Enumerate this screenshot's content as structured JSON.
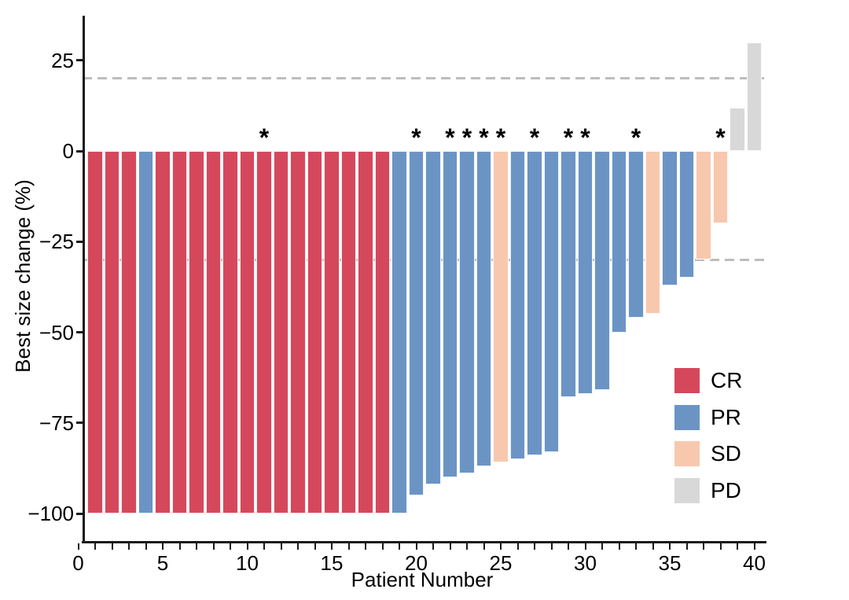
{
  "figure": {
    "background": "#ffffff"
  },
  "chart_data": {
    "type": "bar",
    "variant": "waterfall",
    "title": "",
    "xlabel": "Patient Number",
    "ylabel": "Best size change (%)",
    "grid": false,
    "x_axis": {
      "min": 0,
      "max": 40,
      "minor_tick_step": 1,
      "labeled_ticks": [
        0,
        5,
        10,
        15,
        20,
        25,
        30,
        35,
        40
      ]
    },
    "y_axis": {
      "min": -108,
      "max": 37,
      "ticks": [
        {
          "value": 25,
          "label": "25"
        },
        {
          "value": 0,
          "label": "0"
        },
        {
          "value": -25,
          "label": "−25"
        },
        {
          "value": -50,
          "label": "−50"
        },
        {
          "value": -75,
          "label": "−75"
        },
        {
          "value": -100,
          "label": "−100"
        }
      ]
    },
    "thresholds": [
      {
        "value": 20,
        "style": "dashed",
        "color": "#BDBDBD"
      },
      {
        "value": -30,
        "style": "dashed",
        "color": "#BDBDBD"
      }
    ],
    "annotation_symbol": "*",
    "colors": {
      "CR": "#D5485C",
      "PR": "#6B94C5",
      "SD": "#F8C8AE",
      "PD": "#D8D8D8",
      "axis": "#1a1a1a",
      "threshold": "#BDBDBD"
    },
    "legend": {
      "position": "right-inside",
      "entries": [
        {
          "label": "CR",
          "color": "#D5485C"
        },
        {
          "label": "PR",
          "color": "#6B94C5"
        },
        {
          "label": "SD",
          "color": "#F8C8AE"
        },
        {
          "label": "PD",
          "color": "#D8D8D8"
        }
      ]
    },
    "bars": [
      {
        "patient": 1,
        "value": -100,
        "response": "CR",
        "star": false
      },
      {
        "patient": 2,
        "value": -100,
        "response": "CR",
        "star": false
      },
      {
        "patient": 3,
        "value": -100,
        "response": "CR",
        "star": false
      },
      {
        "patient": 4,
        "value": -100,
        "response": "PR",
        "star": false
      },
      {
        "patient": 5,
        "value": -100,
        "response": "CR",
        "star": false
      },
      {
        "patient": 6,
        "value": -100,
        "response": "CR",
        "star": false
      },
      {
        "patient": 7,
        "value": -100,
        "response": "CR",
        "star": false
      },
      {
        "patient": 8,
        "value": -100,
        "response": "CR",
        "star": false
      },
      {
        "patient": 9,
        "value": -100,
        "response": "CR",
        "star": false
      },
      {
        "patient": 10,
        "value": -100,
        "response": "CR",
        "star": false
      },
      {
        "patient": 11,
        "value": -100,
        "response": "CR",
        "star": true
      },
      {
        "patient": 12,
        "value": -100,
        "response": "CR",
        "star": false
      },
      {
        "patient": 13,
        "value": -100,
        "response": "CR",
        "star": false
      },
      {
        "patient": 14,
        "value": -100,
        "response": "CR",
        "star": false
      },
      {
        "patient": 15,
        "value": -100,
        "response": "CR",
        "star": false
      },
      {
        "patient": 16,
        "value": -100,
        "response": "CR",
        "star": false
      },
      {
        "patient": 17,
        "value": -100,
        "response": "CR",
        "star": false
      },
      {
        "patient": 18,
        "value": -100,
        "response": "CR",
        "star": false
      },
      {
        "patient": 19,
        "value": -100,
        "response": "PR",
        "star": false
      },
      {
        "patient": 20,
        "value": -95,
        "response": "PR",
        "star": true
      },
      {
        "patient": 21,
        "value": -92,
        "response": "PR",
        "star": false
      },
      {
        "patient": 22,
        "value": -90,
        "response": "PR",
        "star": true
      },
      {
        "patient": 23,
        "value": -89,
        "response": "PR",
        "star": true
      },
      {
        "patient": 24,
        "value": -87,
        "response": "PR",
        "star": true
      },
      {
        "patient": 25,
        "value": -86,
        "response": "SD",
        "star": true
      },
      {
        "patient": 26,
        "value": -85,
        "response": "PR",
        "star": false
      },
      {
        "patient": 27,
        "value": -84,
        "response": "PR",
        "star": true
      },
      {
        "patient": 28,
        "value": -83,
        "response": "PR",
        "star": false
      },
      {
        "patient": 29,
        "value": -68,
        "response": "PR",
        "star": true
      },
      {
        "patient": 30,
        "value": -67,
        "response": "PR",
        "star": true
      },
      {
        "patient": 31,
        "value": -66,
        "response": "PR",
        "star": false
      },
      {
        "patient": 32,
        "value": -50,
        "response": "PR",
        "star": false
      },
      {
        "patient": 33,
        "value": -46,
        "response": "PR",
        "star": true
      },
      {
        "patient": 34,
        "value": -45,
        "response": "SD",
        "star": false
      },
      {
        "patient": 35,
        "value": -37,
        "response": "PR",
        "star": false
      },
      {
        "patient": 36,
        "value": -35,
        "response": "PR",
        "star": false
      },
      {
        "patient": 37,
        "value": -30,
        "response": "SD",
        "star": false
      },
      {
        "patient": 38,
        "value": -20,
        "response": "SD",
        "star": true
      },
      {
        "patient": 39,
        "value": 12,
        "response": "PD",
        "star": false
      },
      {
        "patient": 40,
        "value": 30,
        "response": "PD",
        "star": false
      }
    ]
  }
}
